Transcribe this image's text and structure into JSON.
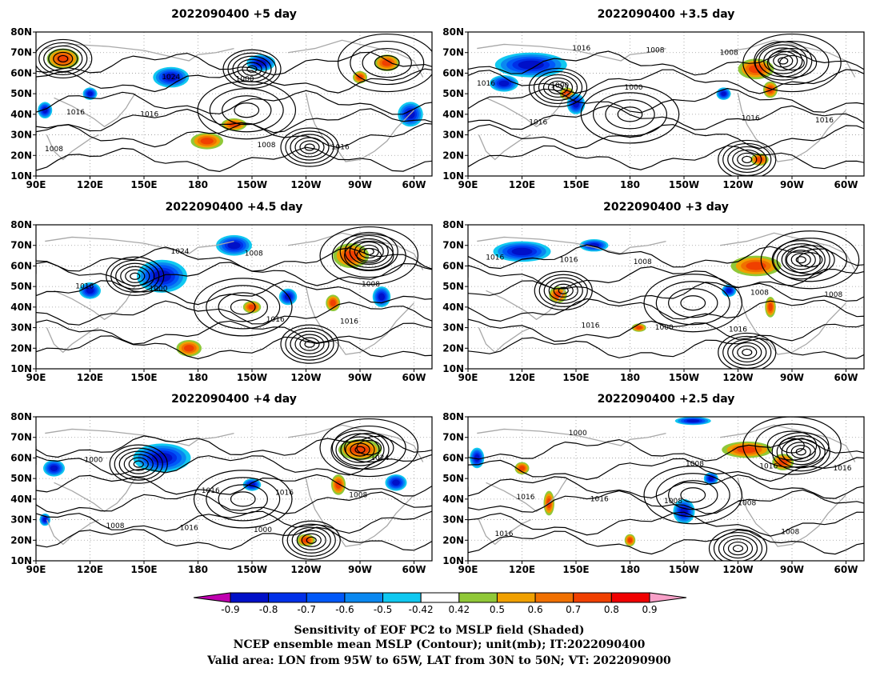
{
  "chart_data": {
    "type": "heatmap",
    "panels": [
      {
        "title": "2022090400  +5 day",
        "contour_labels": [
          "1008",
          "1016",
          "1000",
          "1016",
          "1016",
          "1024",
          "1008"
        ],
        "pos_blobs": [
          [
            105,
            67,
            9,
            5
          ],
          [
            185,
            27,
            9,
            4
          ],
          [
            200,
            35,
            7,
            3
          ],
          [
            285,
            65,
            7,
            4
          ],
          [
            270,
            58,
            4,
            3
          ]
        ],
        "neg_blobs": [
          [
            165,
            58,
            10,
            5
          ],
          [
            215,
            65,
            8,
            4
          ],
          [
            95,
            42,
            4,
            4
          ],
          [
            298,
            40,
            7,
            6
          ],
          [
            120,
            50,
            4,
            3
          ]
        ],
        "highs": [
          [
            207,
            42
          ],
          [
            285,
            65
          ]
        ],
        "lows": [
          [
            105,
            67
          ],
          [
            210,
            62
          ],
          [
            242,
            24
          ]
        ]
      },
      {
        "title": "2022090400  +3.5 day",
        "contour_labels": [
          "1016",
          "1000",
          "1008",
          "1016",
          "1000",
          "1008",
          "1016",
          "1016",
          "1016"
        ],
        "pos_blobs": [
          [
            250,
            62,
            10,
            5
          ],
          [
            258,
            52,
            4,
            4
          ],
          [
            252,
            18,
            5,
            3
          ],
          [
            145,
            50,
            4,
            3
          ]
        ],
        "neg_blobs": [
          [
            125,
            64,
            20,
            6
          ],
          [
            110,
            55,
            8,
            4
          ],
          [
            150,
            45,
            5,
            5
          ],
          [
            232,
            50,
            4,
            3
          ]
        ],
        "highs": [
          [
            180,
            40
          ],
          [
            270,
            65
          ]
        ],
        "lows": [
          [
            140,
            53
          ],
          [
            265,
            66
          ],
          [
            245,
            18
          ]
        ]
      },
      {
        "title": "2022090400  +4.5 day",
        "contour_labels": [
          "1000",
          "1008",
          "1016",
          "1016",
          "1024",
          "1016",
          "1008"
        ],
        "pos_blobs": [
          [
            265,
            65,
            10,
            6
          ],
          [
            210,
            40,
            5,
            3
          ],
          [
            175,
            20,
            7,
            4
          ],
          [
            255,
            42,
            4,
            4
          ]
        ],
        "neg_blobs": [
          [
            160,
            55,
            14,
            8
          ],
          [
            200,
            70,
            10,
            5
          ],
          [
            282,
            45,
            5,
            5
          ],
          [
            120,
            48,
            6,
            4
          ],
          [
            230,
            45,
            5,
            4
          ]
        ],
        "highs": [
          [
            205,
            40
          ],
          [
            275,
            65
          ]
        ],
        "lows": [
          [
            145,
            55
          ],
          [
            275,
            67
          ],
          [
            242,
            22
          ]
        ]
      },
      {
        "title": "2022090400  +3 day",
        "contour_labels": [
          "1008",
          "1016",
          "1008",
          "1016",
          "1000",
          "1008",
          "1016",
          "1016"
        ],
        "pos_blobs": [
          [
            250,
            60,
            14,
            5
          ],
          [
            140,
            46,
            5,
            4
          ],
          [
            185,
            30,
            4,
            2
          ],
          [
            258,
            40,
            3,
            5
          ]
        ],
        "neg_blobs": [
          [
            120,
            67,
            16,
            5
          ],
          [
            160,
            70,
            8,
            3
          ],
          [
            235,
            48,
            4,
            3
          ]
        ],
        "highs": [
          [
            215,
            42
          ],
          [
            280,
            63
          ]
        ],
        "lows": [
          [
            143,
            48
          ],
          [
            275,
            63
          ],
          [
            245,
            18
          ]
        ]
      },
      {
        "title": "2022090400  +4 day",
        "contour_labels": [
          "1000",
          "1008",
          "1000",
          "1016",
          "1016",
          "1024",
          "1008",
          "1016"
        ],
        "pos_blobs": [
          [
            270,
            64,
            12,
            5
          ],
          [
            258,
            47,
            4,
            5
          ],
          [
            240,
            20,
            5,
            3
          ]
        ],
        "neg_blobs": [
          [
            160,
            60,
            16,
            7
          ],
          [
            100,
            55,
            6,
            4
          ],
          [
            210,
            47,
            5,
            3
          ],
          [
            290,
            48,
            6,
            4
          ],
          [
            95,
            30,
            3,
            3
          ]
        ],
        "highs": [
          [
            205,
            40
          ],
          [
            275,
            65
          ]
        ],
        "lows": [
          [
            147,
            57
          ],
          [
            270,
            64
          ],
          [
            243,
            20
          ]
        ]
      },
      {
        "title": "2022090400  +2.5 day",
        "contour_labels": [
          "1008",
          "1016",
          "1000",
          "1008",
          "1016",
          "1016",
          "1016",
          "1008",
          "1008",
          "1016"
        ],
        "pos_blobs": [
          [
            245,
            64,
            14,
            4
          ],
          [
            265,
            58,
            6,
            4
          ],
          [
            120,
            55,
            4,
            3
          ],
          [
            135,
            38,
            3,
            6
          ],
          [
            180,
            20,
            3,
            3
          ]
        ],
        "neg_blobs": [
          [
            95,
            60,
            4,
            5
          ],
          [
            210,
            34,
            6,
            6
          ],
          [
            215,
            78,
            10,
            2
          ],
          [
            225,
            50,
            4,
            3
          ]
        ],
        "highs": [
          [
            215,
            42
          ],
          [
            270,
            66
          ]
        ],
        "lows": [
          [
            275,
            63
          ],
          [
            240,
            16
          ],
          [
            345,
            42
          ]
        ]
      }
    ],
    "lon_ticks": [
      "90E",
      "120E",
      "150E",
      "180",
      "150W",
      "120W",
      "90W",
      "60W"
    ],
    "lat_ticks": [
      "10N",
      "20N",
      "30N",
      "40N",
      "50N",
      "60N",
      "70N",
      "80N"
    ],
    "xlim": [
      90,
      310
    ],
    "ylim": [
      10,
      80
    ],
    "colorbar": {
      "ticks": [
        "-0.9",
        "-0.8",
        "-0.7",
        "-0.6",
        "-0.5",
        "-0.42",
        "0.42",
        "0.5",
        "0.6",
        "0.7",
        "0.8",
        "0.9"
      ],
      "colors": [
        "#c000b0",
        "#0010c8",
        "#0030e8",
        "#0058f8",
        "#0a88f0",
        "#10c8f0",
        "#ffffff",
        "#90c838",
        "#f0a000",
        "#f07000",
        "#f04000",
        "#f00000",
        "#f8a0c8"
      ]
    },
    "caption": [
      "Sensitivity of EOF PC2 to MSLP field (Shaded)",
      "NCEP ensemble mean MSLP (Contour); unit(mb); IT:2022090400",
      "Valid area: LON from 95W to 65W, LAT from 30N to 50N; VT: 2022090900"
    ]
  }
}
